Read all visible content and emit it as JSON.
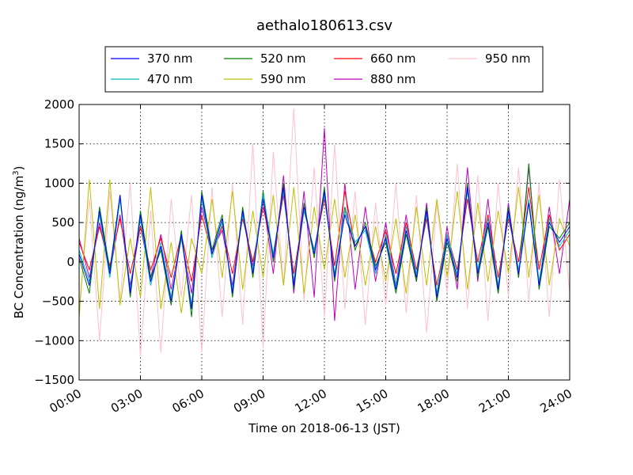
{
  "chart_data": {
    "type": "line",
    "title": "aethalo180613.csv",
    "xlabel": "Time on 2018-06-13 (JST)",
    "ylabel": "BC Concentration (ng/m",
    "ylabel_sup": "3",
    "ylabel_close": ")",
    "xlim": [
      0,
      24
    ],
    "ylim": [
      -1500,
      2000
    ],
    "x_ticks": [
      {
        "value": 0,
        "label": "00:00"
      },
      {
        "value": 3,
        "label": "03:00"
      },
      {
        "value": 6,
        "label": "06:00"
      },
      {
        "value": 9,
        "label": "09:00"
      },
      {
        "value": 12,
        "label": "12:00"
      },
      {
        "value": 15,
        "label": "15:00"
      },
      {
        "value": 18,
        "label": "18:00"
      },
      {
        "value": 21,
        "label": "21:00"
      },
      {
        "value": 24,
        "label": "24:00"
      }
    ],
    "y_ticks": [
      {
        "value": 2000,
        "label": "2000"
      },
      {
        "value": 1500,
        "label": "1500"
      },
      {
        "value": 1000,
        "label": "1000"
      },
      {
        "value": 500,
        "label": "500"
      },
      {
        "value": 0,
        "label": "0"
      },
      {
        "value": -500,
        "label": "−500"
      },
      {
        "value": -1000,
        "label": "−1000"
      },
      {
        "value": -1500,
        "label": "−1500"
      }
    ],
    "grid": true,
    "legend_position": "top",
    "series": [
      {
        "name": "370 nm",
        "color": "#0000ff",
        "x": [
          0,
          0.5,
          1,
          1.5,
          2,
          2.5,
          3,
          3.5,
          4,
          4.5,
          5,
          5.5,
          6,
          6.5,
          7,
          7.5,
          8,
          8.5,
          9,
          9.5,
          10,
          10.5,
          11,
          11.5,
          12,
          12.5,
          13,
          13.5,
          14,
          14.5,
          15,
          15.5,
          16,
          16.5,
          17,
          17.5,
          18,
          18.5,
          19,
          19.5,
          20,
          20.5,
          21,
          21.5,
          22,
          22.5,
          23,
          23.5,
          24
        ],
        "values": [
          100,
          -300,
          650,
          -150,
          850,
          -400,
          600,
          -250,
          200,
          -500,
          350,
          -600,
          850,
          100,
          550,
          -400,
          650,
          -150,
          800,
          50,
          950,
          -300,
          700,
          100,
          900,
          -200,
          600,
          200,
          450,
          -100,
          300,
          -350,
          400,
          -200,
          650,
          -450,
          300,
          -200,
          950,
          -150,
          500,
          -350,
          650,
          -150,
          750,
          -300,
          500,
          250,
          450
        ]
      },
      {
        "name": "470 nm",
        "color": "#00bfbf",
        "x": [
          0,
          0.5,
          1,
          1.5,
          2,
          2.5,
          3,
          3.5,
          4,
          4.5,
          5,
          5.5,
          6,
          6.5,
          7,
          7.5,
          8,
          8.5,
          9,
          9.5,
          10,
          10.5,
          11,
          11.5,
          12,
          12.5,
          13,
          13.5,
          14,
          14.5,
          15,
          15.5,
          16,
          16.5,
          17,
          17.5,
          18,
          18.5,
          19,
          19.5,
          20,
          20.5,
          21,
          21.5,
          22,
          22.5,
          23,
          23.5,
          24
        ],
        "values": [
          150,
          -250,
          600,
          -200,
          800,
          -350,
          550,
          -300,
          250,
          -450,
          300,
          -550,
          800,
          50,
          500,
          -350,
          600,
          -100,
          850,
          100,
          900,
          -250,
          650,
          150,
          850,
          -150,
          650,
          250,
          400,
          -150,
          350,
          -300,
          450,
          -150,
          600,
          -400,
          350,
          -150,
          900,
          -100,
          550,
          -300,
          600,
          -100,
          800,
          -250,
          550,
          200,
          400
        ]
      },
      {
        "name": "520 nm",
        "color": "#008000",
        "x": [
          0,
          0.5,
          1,
          1.5,
          2,
          2.5,
          3,
          3.5,
          4,
          4.5,
          5,
          5.5,
          6,
          6.5,
          7,
          7.5,
          8,
          8.5,
          9,
          9.5,
          10,
          10.5,
          11,
          11.5,
          12,
          12.5,
          13,
          13.5,
          14,
          14.5,
          15,
          15.5,
          16,
          16.5,
          17,
          17.5,
          18,
          18.5,
          19,
          19.5,
          20,
          20.5,
          21,
          21.5,
          22,
          22.5,
          23,
          23.5,
          24
        ],
        "values": [
          50,
          -400,
          700,
          -100,
          850,
          -450,
          650,
          -200,
          150,
          -550,
          400,
          -700,
          900,
          150,
          600,
          -450,
          700,
          -200,
          900,
          0,
          1000,
          -350,
          750,
          50,
          950,
          -250,
          700,
          150,
          500,
          -50,
          250,
          -400,
          350,
          -250,
          700,
          -500,
          250,
          -250,
          1000,
          -200,
          450,
          -400,
          700,
          -200,
          1250,
          -350,
          450,
          300,
          500
        ]
      },
      {
        "name": "590 nm",
        "color": "#bfbf00",
        "x": [
          0,
          0.5,
          1,
          1.5,
          2,
          2.5,
          3,
          3.5,
          4,
          4.5,
          5,
          5.5,
          6,
          6.5,
          7,
          7.5,
          8,
          8.5,
          9,
          9.5,
          10,
          10.5,
          11,
          11.5,
          12,
          12.5,
          13,
          13.5,
          14,
          14.5,
          15,
          15.5,
          16,
          16.5,
          17,
          17.5,
          18,
          18.5,
          19,
          19.5,
          20,
          20.5,
          21,
          21.5,
          22,
          22.5,
          23,
          23.5,
          24
        ],
        "values": [
          -700,
          1050,
          -600,
          1050,
          -550,
          300,
          -450,
          950,
          -600,
          250,
          -650,
          300,
          -150,
          800,
          -200,
          900,
          -350,
          650,
          -200,
          850,
          -300,
          950,
          -400,
          700,
          -100,
          800,
          -200,
          600,
          -300,
          450,
          -250,
          550,
          -400,
          700,
          -300,
          800,
          -200,
          900,
          -350,
          750,
          -250,
          650,
          -150,
          950,
          -200,
          850,
          -300,
          550,
          200
        ]
      },
      {
        "name": "660 nm",
        "color": "#ff0000",
        "x": [
          0,
          0.5,
          1,
          1.5,
          2,
          2.5,
          3,
          3.5,
          4,
          4.5,
          5,
          5.5,
          6,
          6.5,
          7,
          7.5,
          8,
          8.5,
          9,
          9.5,
          10,
          10.5,
          11,
          11.5,
          12,
          12.5,
          13,
          13.5,
          14,
          14.5,
          15,
          15.5,
          16,
          16.5,
          17,
          17.5,
          18,
          18.5,
          19,
          19.5,
          20,
          20.5,
          21,
          21.5,
          22,
          22.5,
          23,
          23.5,
          24
        ],
        "values": [
          250,
          -100,
          450,
          -50,
          550,
          -150,
          450,
          -100,
          300,
          -200,
          350,
          -250,
          600,
          100,
          450,
          -150,
          550,
          0,
          700,
          100,
          850,
          -150,
          650,
          150,
          800,
          -50,
          900,
          200,
          450,
          0,
          400,
          -150,
          500,
          -100,
          550,
          -300,
          350,
          -100,
          800,
          0,
          600,
          -200,
          550,
          0,
          950,
          -100,
          600,
          150,
          350
        ]
      },
      {
        "name": "880 nm",
        "color": "#bf00bf",
        "x": [
          0,
          0.5,
          1,
          1.5,
          2,
          2.5,
          3,
          3.5,
          4,
          4.5,
          5,
          5.5,
          6,
          6.5,
          7,
          7.5,
          8,
          8.5,
          9,
          9.5,
          10,
          10.5,
          11,
          11.5,
          12,
          12.5,
          13,
          13.5,
          14,
          14.5,
          15,
          15.5,
          16,
          16.5,
          17,
          17.5,
          18,
          18.5,
          19,
          19.5,
          20,
          20.5,
          21,
          21.5,
          22,
          22.5,
          23,
          23.5,
          24
        ],
        "values": [
          300,
          -200,
          500,
          -150,
          600,
          -300,
          450,
          -200,
          350,
          -350,
          300,
          -400,
          700,
          150,
          400,
          -300,
          650,
          -50,
          800,
          -150,
          1100,
          -400,
          900,
          -450,
          1700,
          -750,
          1000,
          -350,
          700,
          -250,
          500,
          -300,
          600,
          -250,
          750,
          -500,
          450,
          -350,
          1200,
          -250,
          800,
          -400,
          750,
          -200,
          1200,
          -300,
          700,
          -150,
          800
        ]
      },
      {
        "name": "950 nm",
        "color": "#ffc0cb",
        "x": [
          0,
          0.5,
          1,
          1.5,
          2,
          2.5,
          3,
          3.5,
          4,
          4.5,
          5,
          5.5,
          6,
          6.5,
          7,
          7.5,
          8,
          8.5,
          9,
          9.5,
          10,
          10.5,
          11,
          11.5,
          12,
          12.5,
          13,
          13.5,
          14,
          14.5,
          15,
          15.5,
          16,
          16.5,
          17,
          17.5,
          18,
          18.5,
          19,
          19.5,
          20,
          20.5,
          21,
          21.5,
          22,
          22.5,
          23,
          23.5,
          24
        ],
        "values": [
          -600,
          800,
          -1000,
          900,
          -500,
          1000,
          -1200,
          650,
          -1150,
          800,
          -450,
          850,
          -1150,
          950,
          -700,
          1000,
          -800,
          1500,
          -1100,
          1400,
          -300,
          1950,
          -500,
          1200,
          -700,
          1500,
          -600,
          900,
          -800,
          750,
          -550,
          1000,
          -650,
          850,
          -900,
          750,
          -400,
          1250,
          -600,
          1100,
          -750,
          1000,
          -450,
          1200,
          -500,
          1000,
          -700,
          1050,
          -400
        ]
      }
    ]
  }
}
